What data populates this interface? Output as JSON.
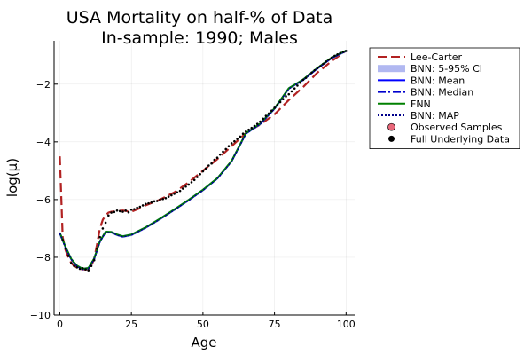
{
  "chart_data": {
    "type": "line",
    "title": "USA Mortality on half-% of Data",
    "subtitle": "In-sample: 1990; Males",
    "xlabel": "Age",
    "ylabel": "log(μ)",
    "xlim": [
      -2,
      103
    ],
    "ylim": [
      -10,
      -0.5
    ],
    "xticks": [
      0,
      25,
      50,
      75,
      100
    ],
    "yticks": [
      -10,
      -8,
      -6,
      -4,
      -2
    ],
    "ytick_labels": [
      "−10",
      "−8",
      "−6",
      "−4",
      "−2"
    ],
    "grid": true,
    "legend_position": "top-right outside",
    "series": [
      {
        "name": "Lee-Carter",
        "color": "#b22222",
        "style": "dashed",
        "x": [
          0,
          1,
          2,
          3,
          4,
          5,
          6,
          7,
          8,
          9,
          10,
          11,
          12,
          13,
          14,
          15,
          16,
          17,
          18,
          20,
          22,
          25,
          28,
          30,
          35,
          40,
          45,
          50,
          55,
          60,
          65,
          70,
          75,
          80,
          85,
          90,
          95,
          100
        ],
        "y": [
          -4.5,
          -7.3,
          -7.75,
          -8.0,
          -8.2,
          -8.3,
          -8.35,
          -8.4,
          -8.42,
          -8.43,
          -8.4,
          -8.3,
          -8.05,
          -7.55,
          -7.0,
          -6.7,
          -6.55,
          -6.45,
          -6.42,
          -6.4,
          -6.38,
          -6.42,
          -6.3,
          -6.2,
          -6.0,
          -5.75,
          -5.4,
          -5.0,
          -4.6,
          -4.15,
          -3.7,
          -3.4,
          -3.05,
          -2.55,
          -2.1,
          -1.6,
          -1.2,
          -0.85
        ]
      },
      {
        "name": "BNN: 5-95% CI",
        "color": "#a8b0f0",
        "style": "band",
        "x": [
          0,
          2,
          4,
          6,
          8,
          10,
          12,
          14,
          16,
          18,
          20,
          22,
          25,
          30,
          35,
          40,
          45,
          50,
          55,
          60,
          65,
          70,
          75,
          80,
          85,
          90,
          95,
          100
        ],
        "lower": [
          -7.22,
          -7.7,
          -8.12,
          -8.35,
          -8.46,
          -8.43,
          -8.1,
          -7.5,
          -7.17,
          -7.18,
          -7.27,
          -7.33,
          -7.27,
          -7.02,
          -6.72,
          -6.4,
          -6.07,
          -5.72,
          -5.32,
          -4.72,
          -3.76,
          -3.43,
          -2.9,
          -2.2,
          -1.9,
          -1.5,
          -1.14,
          -0.9
        ],
        "upper": [
          -7.1,
          -7.6,
          -8.02,
          -8.25,
          -8.36,
          -8.33,
          -8.0,
          -7.4,
          -7.07,
          -7.08,
          -7.17,
          -7.23,
          -7.17,
          -6.92,
          -6.62,
          -6.3,
          -5.97,
          -5.62,
          -5.22,
          -4.62,
          -3.66,
          -3.33,
          -2.8,
          -2.1,
          -1.8,
          -1.4,
          -1.04,
          -0.8
        ]
      },
      {
        "name": "BNN: Mean",
        "color": "#0000ff",
        "style": "solid",
        "x": [
          0,
          2,
          4,
          6,
          8,
          10,
          12,
          14,
          16,
          18,
          20,
          22,
          25,
          30,
          35,
          40,
          45,
          50,
          55,
          60,
          65,
          70,
          75,
          80,
          85,
          90,
          95,
          100
        ],
        "y": [
          -7.16,
          -7.65,
          -8.07,
          -8.3,
          -8.41,
          -8.38,
          -8.05,
          -7.45,
          -7.12,
          -7.13,
          -7.22,
          -7.28,
          -7.22,
          -6.97,
          -6.67,
          -6.35,
          -6.02,
          -5.67,
          -5.27,
          -4.67,
          -3.71,
          -3.38,
          -2.85,
          -2.15,
          -1.85,
          -1.45,
          -1.09,
          -0.85
        ]
      },
      {
        "name": "BNN: Median",
        "color": "#0000cd",
        "style": "dashdot",
        "x": [
          0,
          2,
          4,
          6,
          8,
          10,
          12,
          14,
          16,
          18,
          20,
          22,
          25,
          30,
          35,
          40,
          45,
          50,
          55,
          60,
          65,
          70,
          75,
          80,
          85,
          90,
          95,
          100
        ],
        "y": [
          -7.16,
          -7.65,
          -8.07,
          -8.3,
          -8.41,
          -8.38,
          -8.05,
          -7.45,
          -7.12,
          -7.13,
          -7.22,
          -7.28,
          -7.22,
          -6.97,
          -6.67,
          -6.35,
          -6.02,
          -5.67,
          -5.27,
          -4.67,
          -3.71,
          -3.38,
          -2.85,
          -2.15,
          -1.85,
          -1.45,
          -1.09,
          -0.85
        ]
      },
      {
        "name": "FNN",
        "color": "#008000",
        "style": "solid",
        "x": [
          0,
          2,
          4,
          6,
          8,
          10,
          12,
          14,
          16,
          18,
          20,
          22,
          25,
          30,
          35,
          40,
          45,
          50,
          55,
          60,
          65,
          70,
          75,
          80,
          85,
          90,
          95,
          100
        ],
        "y": [
          -7.15,
          -7.64,
          -8.06,
          -8.29,
          -8.4,
          -8.37,
          -8.04,
          -7.44,
          -7.11,
          -7.12,
          -7.21,
          -7.27,
          -7.21,
          -6.96,
          -6.66,
          -6.34,
          -6.01,
          -5.66,
          -5.26,
          -4.66,
          -3.7,
          -3.37,
          -2.84,
          -2.14,
          -1.84,
          -1.44,
          -1.08,
          -0.84
        ]
      },
      {
        "name": "BNN: MAP",
        "color": "#00008b",
        "style": "dotted",
        "x": [
          0,
          2,
          4,
          6,
          8,
          10,
          12,
          14,
          16,
          18,
          20,
          22,
          25,
          30,
          35,
          40,
          45,
          50,
          55,
          60,
          65,
          70,
          75,
          80,
          85,
          90,
          95,
          100
        ],
        "y": [
          -7.17,
          -7.66,
          -8.08,
          -8.31,
          -8.42,
          -8.39,
          -8.06,
          -7.46,
          -7.13,
          -7.14,
          -7.23,
          -7.29,
          -7.23,
          -6.98,
          -6.68,
          -6.36,
          -6.03,
          -5.68,
          -5.28,
          -4.68,
          -3.72,
          -3.39,
          -2.86,
          -2.16,
          -1.86,
          -1.46,
          -1.1,
          -0.86
        ]
      },
      {
        "name": "Observed Samples",
        "color": "#e8677a",
        "style": "markers",
        "x": [],
        "y": []
      },
      {
        "name": "Full Underlying Data",
        "color": "#000000",
        "style": "points",
        "x": [
          1,
          2,
          3,
          4,
          5,
          6,
          7,
          8,
          9,
          10,
          11,
          12,
          13,
          14,
          15,
          16,
          17,
          18,
          19,
          20,
          21,
          22,
          23,
          24,
          25,
          26,
          27,
          28,
          29,
          30,
          31,
          32,
          33,
          34,
          35,
          36,
          37,
          38,
          39,
          40,
          41,
          42,
          43,
          44,
          45,
          46,
          47,
          48,
          49,
          50,
          51,
          52,
          53,
          54,
          55,
          56,
          57,
          58,
          59,
          60,
          61,
          62,
          63,
          64,
          65,
          66,
          67,
          68,
          69,
          70,
          71,
          72,
          73,
          74,
          75,
          76,
          77,
          78,
          79,
          80,
          81,
          82,
          83,
          84,
          85,
          86,
          87,
          88,
          89,
          90,
          91,
          92,
          93,
          94,
          95,
          96,
          97,
          98,
          99,
          100
        ],
        "y": [
          -7.4,
          -7.7,
          -7.95,
          -8.2,
          -8.3,
          -8.35,
          -8.4,
          -8.38,
          -8.42,
          -8.45,
          -8.3,
          -8.1,
          -7.7,
          -7.3,
          -7.0,
          -6.8,
          -6.55,
          -6.45,
          -6.43,
          -6.38,
          -6.4,
          -6.42,
          -6.38,
          -6.44,
          -6.35,
          -6.33,
          -6.28,
          -6.25,
          -6.2,
          -6.15,
          -6.13,
          -6.1,
          -6.06,
          -6.05,
          -6.0,
          -5.98,
          -5.95,
          -5.9,
          -5.85,
          -5.8,
          -5.75,
          -5.7,
          -5.62,
          -5.55,
          -5.48,
          -5.4,
          -5.32,
          -5.22,
          -5.12,
          -5.02,
          -4.92,
          -4.82,
          -4.75,
          -4.62,
          -4.55,
          -4.44,
          -4.34,
          -4.25,
          -4.15,
          -4.05,
          -3.98,
          -3.9,
          -3.82,
          -3.72,
          -3.64,
          -3.58,
          -3.52,
          -3.45,
          -3.38,
          -3.3,
          -3.2,
          -3.1,
          -3.02,
          -2.92,
          -2.82,
          -2.72,
          -2.62,
          -2.52,
          -2.42,
          -2.35,
          -2.25,
          -2.15,
          -2.05,
          -1.95,
          -1.85,
          -1.78,
          -1.68,
          -1.6,
          -1.52,
          -1.45,
          -1.38,
          -1.3,
          -1.22,
          -1.15,
          -1.08,
          -1.02,
          -0.97,
          -0.92,
          -0.88,
          -0.85
        ]
      }
    ]
  }
}
